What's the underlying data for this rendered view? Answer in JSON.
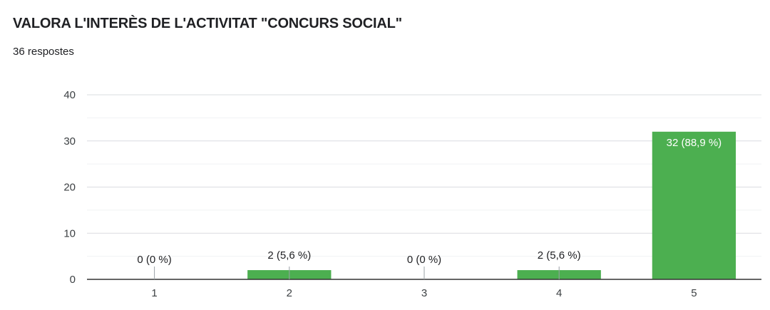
{
  "header": {
    "title": "VALORA L'INTERÈS DE L'ACTIVITAT  \"CONCURS SOCIAL\"",
    "responses": "36 respostes"
  },
  "colors": {
    "bar": "#4caf50",
    "grid": "#e8eaed",
    "axis": "#333333",
    "text": "#202124",
    "label_inside": "#ffffff"
  },
  "chart_data": {
    "type": "bar",
    "categories": [
      "1",
      "2",
      "3",
      "4",
      "5"
    ],
    "values": [
      0,
      2,
      0,
      2,
      32
    ],
    "data_labels": [
      "0 (0 %)",
      "2 (5,6 %)",
      "0 (0 %)",
      "2 (5,6 %)",
      "32 (88,9 %)"
    ],
    "ylim": [
      0,
      40
    ],
    "y_ticks": [
      0,
      10,
      20,
      30,
      40
    ],
    "grid": true,
    "title": "",
    "xlabel": "",
    "ylabel": ""
  }
}
